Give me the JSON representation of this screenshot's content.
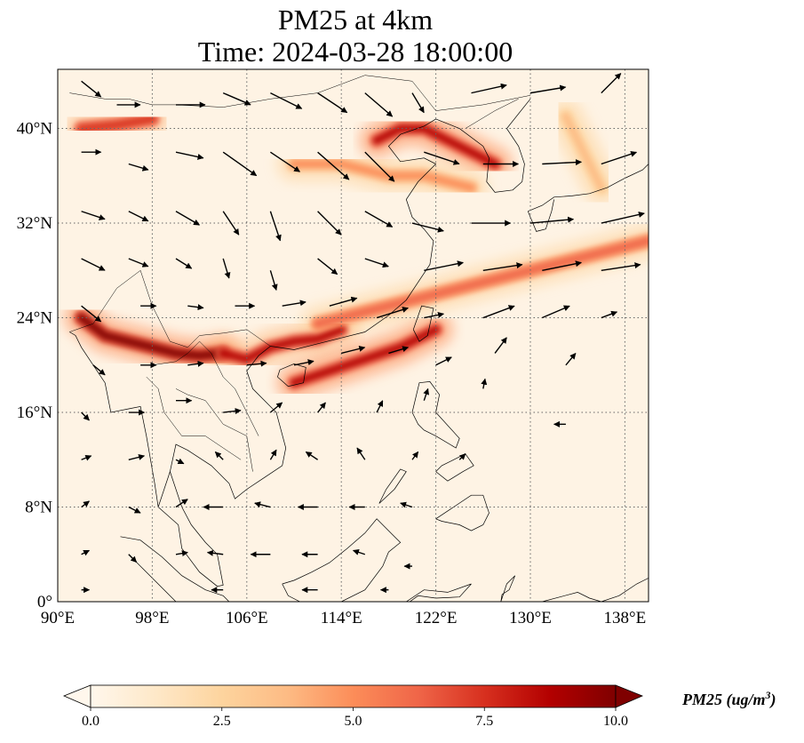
{
  "title": {
    "line1": "PM25 at 4km",
    "line2": "Time: 2024-03-28 18:00:00"
  },
  "axes": {
    "lon_range": [
      90,
      140
    ],
    "lat_range": [
      0,
      45
    ],
    "lon_ticks": [
      {
        "value": 90,
        "label": "90°E"
      },
      {
        "value": 98,
        "label": "98°E"
      },
      {
        "value": 106,
        "label": "106°E"
      },
      {
        "value": 114,
        "label": "114°E"
      },
      {
        "value": 122,
        "label": "122°E"
      },
      {
        "value": 130,
        "label": "130°E"
      },
      {
        "value": 138,
        "label": "138°E"
      }
    ],
    "lat_ticks": [
      {
        "value": 0,
        "label": "0°"
      },
      {
        "value": 8,
        "label": "8°N"
      },
      {
        "value": 16,
        "label": "16°N"
      },
      {
        "value": 24,
        "label": "24°N"
      },
      {
        "value": 32,
        "label": "32°N"
      },
      {
        "value": 40,
        "label": "40°N"
      }
    ],
    "gridlines": true
  },
  "colorbar": {
    "min": 0.0,
    "max": 10.0,
    "colormap": "OrRd",
    "colors": [
      "#fff7ec",
      "#fee8c8",
      "#fdd49e",
      "#fdbb84",
      "#fc8d59",
      "#ef6548",
      "#d7301f",
      "#b30000",
      "#7f0000"
    ],
    "ticks": [
      "0.0",
      "2.5",
      "5.0",
      "7.5",
      "10.0"
    ],
    "label": "PM25 (ug/m",
    "label_sup": "3",
    "label_end": ")",
    "extend": "both"
  },
  "pm25_plumes": [
    {
      "name": "yunnan-myanmar",
      "lon": [
        92,
        94,
        96,
        98,
        100,
        102,
        104
      ],
      "lat": [
        24,
        22.5,
        22,
        21.5,
        21,
        20.8,
        21
      ],
      "value": 9.5
    },
    {
      "name": "guangxi-vietnam",
      "lon": [
        104,
        106,
        108,
        110,
        112,
        114
      ],
      "lat": [
        21,
        20.5,
        21.5,
        22,
        22.2,
        23
      ],
      "value": 8.5
    },
    {
      "name": "south-china-sea-band",
      "lon": [
        110,
        113,
        116,
        119,
        122
      ],
      "lat": [
        18.5,
        19.5,
        20.5,
        21.5,
        23
      ],
      "value": 9.0
    },
    {
      "name": "east-china-band",
      "lon": [
        112,
        116,
        120,
        124,
        128,
        132,
        136,
        140
      ],
      "lat": [
        23.5,
        24.5,
        25.5,
        26.5,
        27.5,
        28.5,
        29.5,
        30.5
      ],
      "value": 6.0
    },
    {
      "name": "north-china-korea",
      "lon": [
        117,
        119,
        121,
        123,
        125,
        127
      ],
      "lat": [
        39,
        40,
        40,
        39,
        38,
        37
      ],
      "value": 9.0
    },
    {
      "name": "yellow-sea-band",
      "lon": [
        110,
        114,
        118,
        121,
        125
      ],
      "lat": [
        37,
        37,
        36,
        36,
        35
      ],
      "value": 4.5
    },
    {
      "name": "west-band",
      "lon": [
        92,
        95,
        98
      ],
      "lat": [
        40,
        40.3,
        40.8
      ],
      "value": 8.0
    },
    {
      "name": "japan-sea-line",
      "lon": [
        133,
        134,
        135,
        136
      ],
      "lat": [
        41,
        39,
        37,
        35
      ],
      "value": 4.0
    }
  ],
  "wind_vectors": [
    {
      "lon": 92,
      "lat": 44,
      "u": 1.0,
      "v": -0.8
    },
    {
      "lon": 95,
      "lat": 42,
      "u": 1.2,
      "v": 0.0
    },
    {
      "lon": 100,
      "lat": 42,
      "u": 1.5,
      "v": 0.0
    },
    {
      "lon": 104,
      "lat": 43,
      "u": 1.4,
      "v": -0.6
    },
    {
      "lon": 108,
      "lat": 43,
      "u": 1.6,
      "v": -0.8
    },
    {
      "lon": 112,
      "lat": 43,
      "u": 1.5,
      "v": -1.0
    },
    {
      "lon": 116,
      "lat": 43,
      "u": 1.4,
      "v": -1.2
    },
    {
      "lon": 120,
      "lat": 43,
      "u": 0.6,
      "v": -1.0
    },
    {
      "lon": 125,
      "lat": 43,
      "u": 1.8,
      "v": 0.4
    },
    {
      "lon": 130,
      "lat": 43,
      "u": 1.8,
      "v": 0.3
    },
    {
      "lon": 136,
      "lat": 43,
      "u": 1.0,
      "v": 1.0
    },
    {
      "lon": 92,
      "lat": 38,
      "u": 1.0,
      "v": 0.0
    },
    {
      "lon": 96,
      "lat": 37,
      "u": 1.0,
      "v": -0.3
    },
    {
      "lon": 100,
      "lat": 38,
      "u": 1.4,
      "v": -0.3
    },
    {
      "lon": 104,
      "lat": 38,
      "u": 1.7,
      "v": -1.2
    },
    {
      "lon": 108,
      "lat": 38,
      "u": 1.5,
      "v": -1.0
    },
    {
      "lon": 112,
      "lat": 38,
      "u": 1.6,
      "v": -1.4
    },
    {
      "lon": 116,
      "lat": 38,
      "u": 1.5,
      "v": -1.5
    },
    {
      "lon": 121,
      "lat": 38,
      "u": 1.8,
      "v": -0.6
    },
    {
      "lon": 126,
      "lat": 37,
      "u": 1.8,
      "v": 0.0
    },
    {
      "lon": 131,
      "lat": 37,
      "u": 2.0,
      "v": 0.1
    },
    {
      "lon": 136,
      "lat": 37,
      "u": 1.8,
      "v": 0.6
    },
    {
      "lon": 92,
      "lat": 33,
      "u": 1.2,
      "v": -0.4
    },
    {
      "lon": 96,
      "lat": 33,
      "u": 1.0,
      "v": -0.5
    },
    {
      "lon": 100,
      "lat": 33,
      "u": 1.2,
      "v": -0.7
    },
    {
      "lon": 104,
      "lat": 33,
      "u": 0.8,
      "v": -1.2
    },
    {
      "lon": 108,
      "lat": 33,
      "u": 0.5,
      "v": -1.5
    },
    {
      "lon": 112,
      "lat": 33,
      "u": 1.2,
      "v": -1.2
    },
    {
      "lon": 116,
      "lat": 33,
      "u": 1.4,
      "v": -0.8
    },
    {
      "lon": 120,
      "lat": 32,
      "u": 1.6,
      "v": -0.4
    },
    {
      "lon": 125,
      "lat": 32,
      "u": 2.0,
      "v": 0.0
    },
    {
      "lon": 130,
      "lat": 32,
      "u": 2.2,
      "v": 0.2
    },
    {
      "lon": 136,
      "lat": 32,
      "u": 2.2,
      "v": 0.5
    },
    {
      "lon": 92,
      "lat": 29,
      "u": 1.2,
      "v": -0.6
    },
    {
      "lon": 96,
      "lat": 29,
      "u": 1.0,
      "v": -0.4
    },
    {
      "lon": 100,
      "lat": 29,
      "u": 0.8,
      "v": -0.5
    },
    {
      "lon": 104,
      "lat": 29,
      "u": 0.3,
      "v": -1.0
    },
    {
      "lon": 108,
      "lat": 28,
      "u": 0.3,
      "v": -1.0
    },
    {
      "lon": 112,
      "lat": 29,
      "u": 1.0,
      "v": -0.8
    },
    {
      "lon": 116,
      "lat": 29,
      "u": 1.2,
      "v": -0.4
    },
    {
      "lon": 121,
      "lat": 28,
      "u": 2.0,
      "v": 0.4
    },
    {
      "lon": 126,
      "lat": 28,
      "u": 2.0,
      "v": 0.3
    },
    {
      "lon": 131,
      "lat": 28,
      "u": 2.0,
      "v": 0.4
    },
    {
      "lon": 136,
      "lat": 28,
      "u": 2.0,
      "v": 0.3
    },
    {
      "lon": 92,
      "lat": 25,
      "u": 1.0,
      "v": -0.8
    },
    {
      "lon": 97,
      "lat": 25,
      "u": 0.8,
      "v": 0.0
    },
    {
      "lon": 101,
      "lat": 25,
      "u": 0.8,
      "v": -0.1
    },
    {
      "lon": 105,
      "lat": 25,
      "u": 1.0,
      "v": 0.0
    },
    {
      "lon": 109,
      "lat": 25,
      "u": 1.2,
      "v": 0.2
    },
    {
      "lon": 113,
      "lat": 25,
      "u": 1.4,
      "v": 0.4
    },
    {
      "lon": 117,
      "lat": 24,
      "u": 1.6,
      "v": 0.5
    },
    {
      "lon": 121,
      "lat": 24,
      "u": 1.0,
      "v": 0.2
    },
    {
      "lon": 126,
      "lat": 24,
      "u": 1.6,
      "v": 0.6
    },
    {
      "lon": 131,
      "lat": 24,
      "u": 1.4,
      "v": 0.6
    },
    {
      "lon": 136,
      "lat": 24,
      "u": 0.8,
      "v": 0.3
    },
    {
      "lon": 93,
      "lat": 20,
      "u": 0.6,
      "v": -0.5
    },
    {
      "lon": 97,
      "lat": 20,
      "u": 0.8,
      "v": 0.0
    },
    {
      "lon": 101,
      "lat": 20,
      "u": 0.8,
      "v": 0.1
    },
    {
      "lon": 106,
      "lat": 20,
      "u": 1.0,
      "v": 0.1
    },
    {
      "lon": 110,
      "lat": 20,
      "u": 1.0,
      "v": 0.2
    },
    {
      "lon": 114,
      "lat": 21,
      "u": 1.2,
      "v": 0.3
    },
    {
      "lon": 118,
      "lat": 21,
      "u": 1.0,
      "v": 0.3
    },
    {
      "lon": 122,
      "lat": 20,
      "u": 0.8,
      "v": 0.4
    },
    {
      "lon": 127,
      "lat": 21,
      "u": 0.6,
      "v": 0.8
    },
    {
      "lon": 133,
      "lat": 20,
      "u": 0.5,
      "v": 0.6
    },
    {
      "lon": 92,
      "lat": 16,
      "u": 0.4,
      "v": -0.4
    },
    {
      "lon": 96,
      "lat": 16,
      "u": 0.8,
      "v": 0.0
    },
    {
      "lon": 100,
      "lat": 17,
      "u": 0.8,
      "v": 0.0
    },
    {
      "lon": 104,
      "lat": 16,
      "u": 0.9,
      "v": 0.1
    },
    {
      "lon": 108,
      "lat": 16,
      "u": 0.6,
      "v": 0.5
    },
    {
      "lon": 112,
      "lat": 16,
      "u": 0.4,
      "v": 0.5
    },
    {
      "lon": 117,
      "lat": 16,
      "u": 0.3,
      "v": 0.6
    },
    {
      "lon": 121,
      "lat": 17,
      "u": 0.2,
      "v": 0.6
    },
    {
      "lon": 126,
      "lat": 18,
      "u": 0.1,
      "v": 0.5
    },
    {
      "lon": 133,
      "lat": 15,
      "u": -0.6,
      "v": 0.0
    },
    {
      "lon": 92,
      "lat": 12,
      "u": 0.5,
      "v": 0.2
    },
    {
      "lon": 96,
      "lat": 12,
      "u": 0.8,
      "v": 0.2
    },
    {
      "lon": 100,
      "lat": 12,
      "u": 0.4,
      "v": -0.2
    },
    {
      "lon": 104,
      "lat": 12,
      "u": -0.4,
      "v": 0.4
    },
    {
      "lon": 108,
      "lat": 12,
      "u": 0.3,
      "v": 0.5
    },
    {
      "lon": 112,
      "lat": 12,
      "u": -0.6,
      "v": 0.4
    },
    {
      "lon": 116,
      "lat": 12,
      "u": -0.4,
      "v": 0.6
    },
    {
      "lon": 120,
      "lat": 12,
      "u": 0.3,
      "v": 0.4
    },
    {
      "lon": 124,
      "lat": 12,
      "u": 0.3,
      "v": 0.3
    },
    {
      "lon": 92,
      "lat": 8,
      "u": 0.4,
      "v": 0.3
    },
    {
      "lon": 96,
      "lat": 8,
      "u": 0.6,
      "v": -0.3
    },
    {
      "lon": 100,
      "lat": 8,
      "u": 0.6,
      "v": 0.4
    },
    {
      "lon": 104,
      "lat": 8,
      "u": -1.0,
      "v": 0.0
    },
    {
      "lon": 108,
      "lat": 8,
      "u": -0.8,
      "v": 0.2
    },
    {
      "lon": 112,
      "lat": 8,
      "u": -1.0,
      "v": 0.0
    },
    {
      "lon": 116,
      "lat": 8,
      "u": -0.8,
      "v": 0.0
    },
    {
      "lon": 120,
      "lat": 8,
      "u": -0.6,
      "v": 0.2
    },
    {
      "lon": 92,
      "lat": 4,
      "u": 0.4,
      "v": 0.2
    },
    {
      "lon": 96,
      "lat": 4,
      "u": 0.4,
      "v": -0.4
    },
    {
      "lon": 100,
      "lat": 4,
      "u": 0.6,
      "v": 0.1
    },
    {
      "lon": 104,
      "lat": 4,
      "u": -0.8,
      "v": 0.1
    },
    {
      "lon": 108,
      "lat": 4,
      "u": -1.0,
      "v": 0.0
    },
    {
      "lon": 112,
      "lat": 4,
      "u": -0.8,
      "v": 0.0
    },
    {
      "lon": 116,
      "lat": 4,
      "u": -0.6,
      "v": 0.2
    },
    {
      "lon": 120,
      "lat": 3,
      "u": -0.4,
      "v": 0.0
    },
    {
      "lon": 92,
      "lat": 1,
      "u": 0.4,
      "v": 0.0
    },
    {
      "lon": 104,
      "lat": 1,
      "u": -0.6,
      "v": 0.0
    },
    {
      "lon": 112,
      "lat": 1,
      "u": -0.8,
      "v": 0.0
    },
    {
      "lon": 118,
      "lat": 1,
      "u": -0.4,
      "v": 0.0
    }
  ],
  "coastlines": [
    {
      "name": "china-coast",
      "lon": [
        108,
        110,
        112,
        114,
        116,
        118,
        119.5,
        120.5,
        121.5,
        121.8,
        121,
        120,
        119.5,
        120.5,
        122,
        121,
        119,
        118,
        119,
        121,
        122
      ],
      "lat": [
        21.6,
        21.3,
        21.8,
        22.3,
        22.8,
        24.2,
        25.5,
        27,
        28.5,
        30.5,
        31.5,
        32.5,
        34,
        35.5,
        37,
        37.5,
        37.2,
        38.5,
        39.5,
        40.2,
        40.8
      ]
    },
    {
      "name": "korea",
      "lon": [
        122,
        124,
        126,
        126.5,
        126.3,
        127,
        128.5,
        129.3,
        129.5,
        129,
        128,
        130
      ],
      "lat": [
        40.8,
        40,
        38.5,
        37.5,
        35.5,
        34.6,
        34.8,
        35.5,
        37,
        38.5,
        40,
        42.5
      ]
    },
    {
      "name": "japan",
      "lon": [
        129.8,
        131,
        132,
        133.5,
        135,
        136.5,
        138,
        139.5,
        140
      ],
      "lat": [
        33,
        33.5,
        34.2,
        34.3,
        34.5,
        35,
        35.8,
        36.5,
        37
      ]
    },
    {
      "name": "japan-kyushu-south",
      "lon": [
        129.8,
        130.5,
        131.3,
        131.8,
        132
      ],
      "lat": [
        33,
        31.3,
        31.5,
        33,
        34
      ]
    },
    {
      "name": "taiwan",
      "lon": [
        120.1,
        120.8,
        121.8,
        121.3,
        120.6,
        120.1
      ],
      "lat": [
        23,
        25,
        24.8,
        22.5,
        22,
        23
      ]
    },
    {
      "name": "hainan",
      "lon": [
        108.6,
        109.5,
        110.8,
        111,
        110,
        108.8,
        108.6
      ],
      "lat": [
        19,
        18.2,
        18.5,
        19.8,
        20.1,
        19.6,
        19
      ]
    },
    {
      "name": "indochina",
      "lon": [
        108,
        107,
        106,
        106.5,
        108.5,
        109.3,
        109,
        107.5,
        106,
        105,
        104.5,
        103,
        101,
        100,
        99.5,
        98.5,
        98.2,
        97.5,
        97,
        96,
        94.5,
        94,
        93,
        92,
        91.5,
        91
      ],
      "lat": [
        21.6,
        20.8,
        19.5,
        18,
        16,
        13,
        11.5,
        10.5,
        9.5,
        8.7,
        10,
        11.5,
        12.8,
        13.3,
        11,
        8,
        10,
        14,
        16.5,
        16.3,
        16,
        18.5,
        20,
        21.5,
        22.5,
        22.8
      ]
    },
    {
      "name": "malay-peninsula",
      "lon": [
        99.5,
        100.5,
        101.3,
        102.5,
        103.5,
        104,
        103.5,
        102,
        100.5,
        100.2,
        98.5
      ],
      "lat": [
        11,
        8,
        6.5,
        5,
        4,
        1.4,
        1.3,
        2.5,
        4.5,
        6.5,
        8
      ]
    },
    {
      "name": "sumatra",
      "lon": [
        95.3,
        97,
        98.8,
        100.5,
        102.5,
        104,
        104.5,
        102,
        100,
        98,
        96
      ],
      "lat": [
        5.5,
        5.2,
        3.8,
        2.2,
        1,
        0.5,
        0,
        0,
        0,
        2,
        4
      ]
    },
    {
      "name": "borneo",
      "lon": [
        109,
        110,
        111.5,
        113,
        114.5,
        116,
        117,
        118.5,
        119,
        118,
        117.5,
        116,
        114,
        112,
        110.5,
        109.5,
        109
      ],
      "lat": [
        1.5,
        1.8,
        2.5,
        3.3,
        4.5,
        5.8,
        7,
        5.5,
        5,
        4.2,
        3,
        1,
        0,
        0,
        0,
        0.5,
        1.5
      ]
    },
    {
      "name": "luzon",
      "lon": [
        120,
        120.6,
        121.5,
        122.3,
        122,
        124,
        123.7,
        122,
        121,
        120.5,
        120
      ],
      "lat": [
        16,
        18.5,
        18.6,
        17.5,
        16,
        13.8,
        13,
        14,
        14.5,
        15,
        16
      ]
    },
    {
      "name": "mindanao",
      "lon": [
        122,
        123.5,
        125,
        126,
        126.5,
        126,
        125,
        124,
        122.5,
        122
      ],
      "lat": [
        7,
        8,
        9,
        9,
        7.5,
        6.5,
        6,
        6.5,
        6.8,
        7
      ]
    },
    {
      "name": "visayas",
      "lon": [
        122,
        123,
        124.3,
        125.2,
        124.5,
        123.5,
        122.5,
        122
      ],
      "lat": [
        11,
        10.2,
        11,
        11.5,
        12.5,
        12,
        11.5,
        11
      ]
    },
    {
      "name": "palawan",
      "lon": [
        117.2,
        118.5,
        119.5,
        119,
        117.8,
        117.2
      ],
      "lat": [
        8.3,
        9.5,
        11,
        11.2,
        9.5,
        8.3
      ]
    },
    {
      "name": "sulawesi-north",
      "lon": [
        119.5,
        121,
        123,
        125,
        124,
        122,
        120.5,
        119.8
      ],
      "lat": [
        0,
        1,
        0.8,
        1.5,
        0.4,
        0.3,
        0.5,
        0
      ]
    },
    {
      "name": "new-guinea-west",
      "lon": [
        131,
        132.5,
        134,
        135,
        136,
        137.5,
        139,
        140
      ],
      "lat": [
        0,
        0.4,
        0.8,
        0.3,
        0,
        0.5,
        1.5,
        2
      ]
    },
    {
      "name": "halmahera",
      "lon": [
        127.5,
        128,
        128.7,
        128.2,
        127.6,
        127.5
      ],
      "lat": [
        0,
        1.5,
        2.2,
        1,
        0.6,
        0
      ]
    }
  ],
  "borders": [
    {
      "lon": [
        91,
        93,
        95,
        97,
        98,
        98.5,
        99.5,
        101,
        102,
        104,
        106,
        108
      ],
      "lat": [
        22.8,
        23.5,
        26.5,
        28,
        25,
        24,
        22,
        21.5,
        22.5,
        22.7,
        23,
        21.6
      ]
    },
    {
      "lon": [
        98,
        100,
        101,
        102,
        103,
        104,
        105,
        106,
        107
      ],
      "lat": [
        20,
        20.3,
        21,
        22,
        21,
        19,
        18,
        16,
        14
      ]
    },
    {
      "lon": [
        100,
        101,
        102.5,
        104,
        106,
        106.5
      ],
      "lat": [
        18,
        17.5,
        17,
        15,
        14,
        11
      ]
    },
    {
      "lon": [
        97.5,
        98.5,
        99,
        100.5,
        102.5,
        104,
        105.5
      ],
      "lat": [
        19,
        18,
        16,
        14,
        14,
        13,
        12
      ]
    },
    {
      "lon": [
        91,
        94,
        96,
        98,
        100,
        104,
        108,
        112,
        116,
        120,
        122,
        126,
        130
      ],
      "lat": [
        43,
        42.5,
        42.5,
        42,
        42,
        41.8,
        42.5,
        43,
        44.5,
        44,
        41.5,
        42,
        42.8
      ]
    },
    {
      "lon": [
        124.5,
        127,
        129
      ],
      "lat": [
        40,
        41.5,
        42.5
      ]
    }
  ]
}
